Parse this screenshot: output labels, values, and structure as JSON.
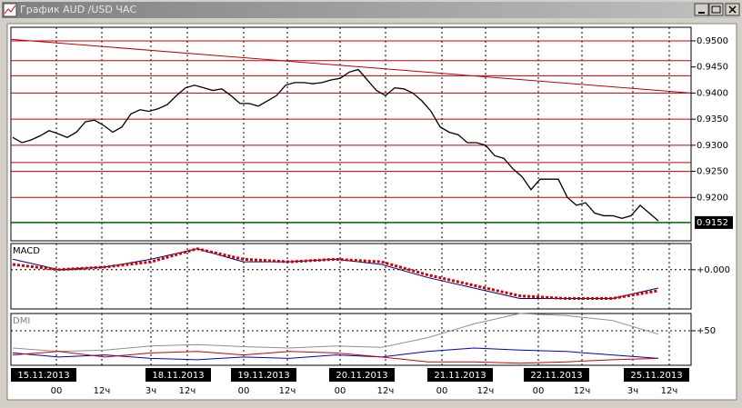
{
  "window": {
    "title": "График AUD /USD ЧАС"
  },
  "chart_data": [
    {
      "type": "line",
      "color": "#000000",
      "values": [
        0.9315,
        0.9305,
        0.931,
        0.9318,
        0.9328,
        0.9322,
        0.9315,
        0.9325,
        0.9345,
        0.9348,
        0.9338,
        0.9325,
        0.9335,
        0.936,
        0.9368,
        0.9365,
        0.937,
        0.9378,
        0.9395,
        0.941,
        0.9415,
        0.941,
        0.9405,
        0.9408,
        0.9395,
        0.938,
        0.938,
        0.9375,
        0.9385,
        0.9395,
        0.9415,
        0.942,
        0.942,
        0.9418,
        0.942,
        0.9425,
        0.9428,
        0.944,
        0.9445,
        0.9425,
        0.9405,
        0.9395,
        0.941,
        0.9408,
        0.94,
        0.9385,
        0.9365,
        0.9335,
        0.9325,
        0.932,
        0.9305,
        0.9305,
        0.93,
        0.928,
        0.9275,
        0.9255,
        0.924,
        0.9215,
        0.9235,
        0.9235,
        0.9235,
        0.92,
        0.9185,
        0.919,
        0.917,
        0.9165,
        0.9165,
        0.916,
        0.9165,
        0.9185,
        0.917,
        0.9155
      ],
      "ylim": [
        0.9117,
        0.9526
      ],
      "yticks": [
        {
          "value": 0.95,
          "label": "0.9500"
        },
        {
          "value": 0.945,
          "label": "0.9450"
        },
        {
          "value": 0.94,
          "label": "0.9400"
        },
        {
          "value": 0.935,
          "label": "0.9350"
        },
        {
          "value": 0.93,
          "label": "0.9300"
        },
        {
          "value": 0.925,
          "label": "0.9250"
        },
        {
          "value": 0.92,
          "label": "0.9200"
        }
      ],
      "levels": [
        0.95,
        0.9462,
        0.9433,
        0.94,
        0.935,
        0.93,
        0.9267,
        0.925,
        0.92
      ],
      "level_color": "#c00000",
      "trendline": [
        0.9503,
        0.94
      ],
      "last_value": {
        "value": 0.9152,
        "label": "0.9152"
      },
      "last_color": "#006000"
    },
    {
      "type": "line",
      "title": "MACD",
      "series": [
        {
          "color": "#000080",
          "values": [
            0.0004,
            0.0,
            0.0001,
            0.0004,
            0.0008,
            0.0003,
            0.0003,
            0.0004,
            0.0002,
            -0.0003,
            -0.0007,
            -0.0011,
            -0.0011,
            -0.0011,
            -0.0007
          ]
        },
        {
          "color": "#d00000",
          "values": [
            0.0002,
            0.0,
            0.0001,
            0.0003,
            0.0008,
            0.0004,
            0.0003,
            0.0004,
            0.0003,
            -0.0002,
            -0.0006,
            -0.001,
            -0.0011,
            -0.0011,
            -0.0008
          ]
        }
      ],
      "ylim": [
        -0.0015,
        0.001
      ],
      "yticks": [
        {
          "value": 0,
          "label": "+0.000"
        }
      ]
    },
    {
      "type": "line",
      "title": "DMI",
      "series": [
        {
          "color": "#909090",
          "values": [
            25,
            20,
            22,
            28,
            30,
            27,
            25,
            28,
            26,
            40,
            60,
            75,
            72,
            65,
            45
          ]
        },
        {
          "color": "#0000c0",
          "values": [
            18,
            12,
            15,
            10,
            8,
            12,
            10,
            15,
            12,
            20,
            25,
            22,
            20,
            15,
            10
          ]
        },
        {
          "color": "#d00000",
          "values": [
            15,
            20,
            12,
            18,
            20,
            15,
            20,
            18,
            12,
            5,
            5,
            3,
            5,
            8,
            10
          ]
        }
      ],
      "ylim": [
        0,
        75
      ],
      "yticks": [
        {
          "value": 50,
          "label": "+50"
        }
      ]
    }
  ],
  "x_axis": {
    "dates": [
      "15.11.2013",
      "18.11.2013",
      "19.11.2013",
      "20.11.2013",
      "21.11.2013",
      "22.11.2013",
      "25.11.2013"
    ],
    "hours": [
      "00",
      "12ч",
      "3ч",
      "12ч",
      "00",
      "12ч",
      "00",
      "12ч",
      "00",
      "12ч",
      "00",
      "12ч",
      "3ч",
      "12ч"
    ]
  }
}
